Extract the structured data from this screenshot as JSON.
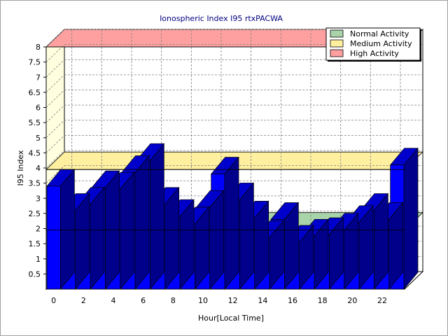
{
  "chart_data": {
    "type": "bar",
    "title": "Ionospheric Index I95 rtxPACWA",
    "xlabel": "Hour[Local Time]",
    "ylabel": "I95 Index",
    "x_tick_labels": [
      "0",
      "2",
      "4",
      "6",
      "8",
      "10",
      "12",
      "14",
      "16",
      "18",
      "20",
      "22"
    ],
    "y_tick_labels": [
      "0.5",
      "1",
      "1.5",
      "2",
      "2.5",
      "3",
      "3.5",
      "4",
      "4.5",
      "5",
      "5.5",
      "6",
      "6.5",
      "7",
      "7.5",
      "8"
    ],
    "ylim": [
      0,
      8
    ],
    "hours": [
      0,
      1,
      2,
      3,
      4,
      5,
      6,
      7,
      8,
      9,
      10,
      11,
      12,
      13,
      14,
      15,
      16,
      17,
      18,
      19,
      20,
      21,
      22,
      23
    ],
    "values": [
      3.4,
      2.6,
      2.8,
      3.35,
      3.3,
      3.85,
      4.25,
      2.8,
      2.4,
      2.15,
      2.7,
      3.8,
      2.95,
      2.35,
      1.7,
      2.3,
      1.55,
      1.75,
      1.8,
      1.95,
      2.2,
      2.6,
      2.3,
      4.1
    ],
    "bands": [
      {
        "name": "Normal Activity",
        "from": 1.95,
        "to": 1.95,
        "color": "#a9d4a9"
      },
      {
        "name": "Medium Activity",
        "from": 3.95,
        "to": 3.95,
        "color": "#fff0a0"
      },
      {
        "name": "High Activity",
        "from": 8,
        "to": 8,
        "color": "#ffa0a0"
      }
    ],
    "bar_color": "#0000ff",
    "bar_top_color": "#0000cc",
    "bar_side_color": "#00008b",
    "grid": true,
    "legend_position": "top-right"
  }
}
